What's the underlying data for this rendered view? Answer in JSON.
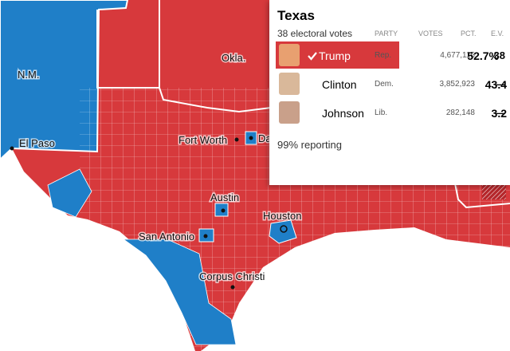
{
  "map": {
    "labels": {
      "nm": "N.M.",
      "okla": "Okla.",
      "el_paso": "El Paso",
      "fort_worth": "Fort Worth",
      "dallas": "Dallas",
      "austin": "Austin",
      "san_antonio": "San Antonio",
      "houston": "Houston",
      "corpus_christi": "Corpus Christi"
    }
  },
  "panel": {
    "title": "Texas",
    "subtitle": "38 electoral votes",
    "headers": [
      "PARTY",
      "VOTES",
      "PCT.",
      "E.V."
    ],
    "rows": [
      [
        "Trump",
        "Rep.",
        "4,677,115",
        "52.7%",
        "38"
      ],
      [
        "Clinton",
        "Dem.",
        "3,852,923",
        "43.4",
        "—"
      ],
      [
        "Johnson",
        "Lib.",
        "282,148",
        "3.2",
        "—"
      ]
    ],
    "footer": "99% reporting"
  }
}
